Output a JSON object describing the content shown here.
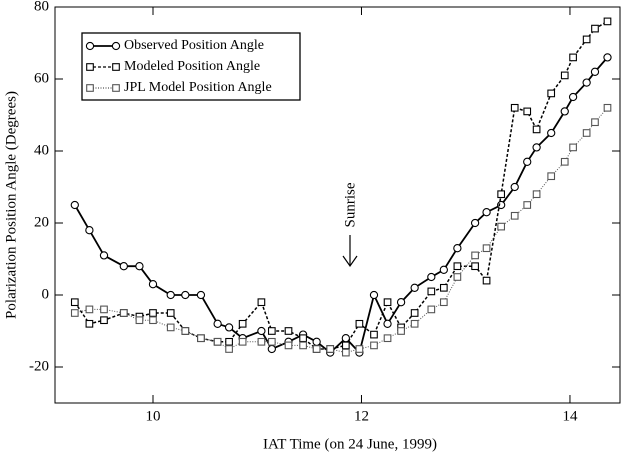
{
  "chart_data": {
    "type": "line",
    "xlabel": "IAT Time (on 24 June, 1999)",
    "ylabel": "Polarization Position Angle (Degrees)",
    "annotation": "Sunrise",
    "xlim": [
      9.06,
      14.48
    ],
    "ylim": [
      -30,
      80
    ],
    "xticks": [
      10,
      12,
      14
    ],
    "yticks": [
      -20,
      0,
      20,
      40,
      60,
      80
    ],
    "legend": "upper left",
    "x": [
      9.25,
      9.39,
      9.53,
      9.72,
      9.87,
      10.0,
      10.17,
      10.31,
      10.46,
      10.62,
      10.73,
      10.86,
      11.04,
      11.14,
      11.3,
      11.44,
      11.57,
      11.7,
      11.85,
      11.98,
      12.12,
      12.25,
      12.38,
      12.51,
      12.67,
      12.79,
      12.92,
      13.09,
      13.2,
      13.34,
      13.47,
      13.59,
      13.68,
      13.82,
      13.95,
      14.03,
      14.16,
      14.24,
      14.36
    ],
    "series": [
      {
        "name": "Observed Position Angle",
        "color": "#000000",
        "line_style": "solid",
        "marker": "circle",
        "values": [
          25,
          18,
          11,
          8,
          8,
          3,
          0,
          0,
          0,
          -8,
          -9,
          -12,
          -10,
          -15,
          -13,
          -11,
          -13,
          -16,
          -12,
          -16,
          0,
          -8,
          -2,
          2,
          5,
          7,
          13,
          20,
          23,
          25,
          30,
          37,
          41,
          45,
          51,
          55,
          59,
          62,
          66
        ]
      },
      {
        "name": "Modeled Position Angle",
        "color": "#000000",
        "line_style": "dashed",
        "marker": "square",
        "values": [
          -2,
          -8,
          -7,
          -5,
          -6,
          -5,
          -5,
          -10,
          -12,
          -13,
          -13,
          -8,
          -2,
          -10,
          -10,
          -12,
          -15,
          -15,
          -14,
          -8,
          -11,
          -2,
          -9,
          -5,
          1,
          2,
          8,
          8,
          4,
          28,
          52,
          51,
          46,
          56,
          61,
          66,
          71,
          74,
          76
        ]
      },
      {
        "name": "JPL Model Position Angle",
        "color": "#555555",
        "line_style": "dotted",
        "marker": "square",
        "values": [
          -5,
          -4,
          -4,
          -5,
          -7,
          -7,
          -9,
          -10,
          -12,
          -13,
          -15,
          -13,
          -13,
          -13,
          -14,
          -14,
          -15,
          -15,
          -16,
          -15,
          -14,
          -12,
          -10,
          -8,
          -4,
          -2,
          5,
          11,
          13,
          19,
          22,
          25,
          28,
          33,
          37,
          41,
          45,
          48,
          52
        ]
      }
    ]
  }
}
